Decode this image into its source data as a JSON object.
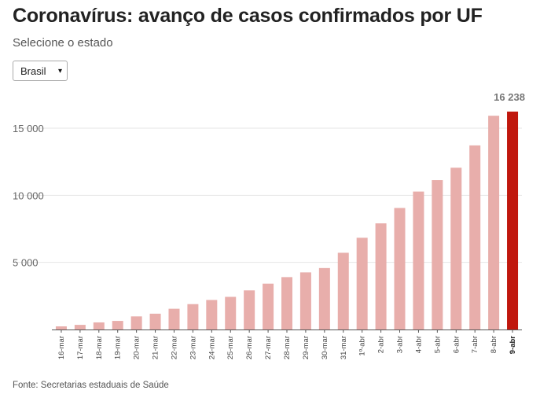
{
  "header": {
    "title": "Coronavírus: avanço de casos confirmados por UF",
    "subtitle": "Selecione o estado"
  },
  "state_select": {
    "selected": "Brasil",
    "caret_icon": "▾"
  },
  "chart_data": {
    "type": "bar",
    "categories": [
      "16-mar",
      "17-mar",
      "18-mar",
      "19-mar",
      "20-mar",
      "21-mar",
      "22-mar",
      "23-mar",
      "24-mar",
      "25-mar",
      "26-mar",
      "27-mar",
      "28-mar",
      "29-mar",
      "30-mar",
      "31-mar",
      "1º-abr",
      "2-abr",
      "3-abr",
      "4-abr",
      "5-abr",
      "6-abr",
      "7-abr",
      "8-abr",
      "9-abr"
    ],
    "values": [
      234,
      346,
      529,
      640,
      977,
      1178,
      1546,
      1891,
      2201,
      2433,
      2915,
      3417,
      3904,
      4256,
      4579,
      5717,
      6836,
      7910,
      9056,
      10278,
      11130,
      12056,
      13717,
      15927,
      16238
    ],
    "yticks": [
      5000,
      10000,
      15000
    ],
    "ytick_labels": [
      "5 000",
      "10 000",
      "15 000"
    ],
    "ylim": [
      0,
      17500
    ],
    "grid": true,
    "highlight_index": 24,
    "annotation": "16 238",
    "colors": {
      "bar": "#e8aeab",
      "highlight": "#c0170d",
      "grid": "#e6e6e6",
      "axis": "#555555"
    }
  },
  "footer": {
    "source": "Fonte: Secretarias estaduais de Saúde"
  }
}
